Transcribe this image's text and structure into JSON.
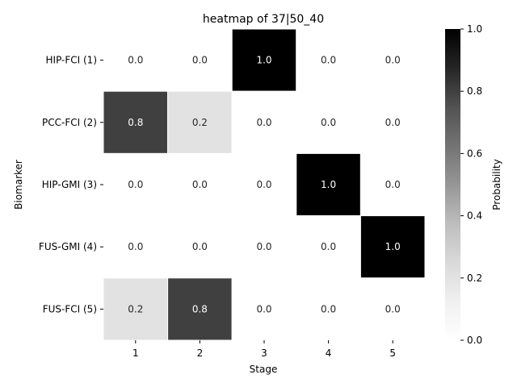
{
  "chart_data": {
    "type": "heatmap",
    "title": "heatmap of 37|50_40",
    "xlabel": "Stage",
    "ylabel": "Biomarker",
    "x_categories": [
      "1",
      "2",
      "3",
      "4",
      "5"
    ],
    "y_categories": [
      "HIP-FCI (1)",
      "PCC-FCI (2)",
      "HIP-GMI (3)",
      "FUS-GMI (4)",
      "FUS-FCI (5)"
    ],
    "values": [
      [
        0.0,
        0.0,
        1.0,
        0.0,
        0.0
      ],
      [
        0.8,
        0.2,
        0.0,
        0.0,
        0.0
      ],
      [
        0.0,
        0.0,
        0.0,
        1.0,
        0.0
      ],
      [
        0.0,
        0.0,
        0.0,
        0.0,
        1.0
      ],
      [
        0.2,
        0.8,
        0.0,
        0.0,
        0.0
      ]
    ],
    "value_labels": [
      [
        "0.0",
        "0.0",
        "1.0",
        "0.0",
        "0.0"
      ],
      [
        "0.8",
        "0.2",
        "0.0",
        "0.0",
        "0.0"
      ],
      [
        "0.0",
        "0.0",
        "0.0",
        "1.0",
        "0.0"
      ],
      [
        "0.0",
        "0.0",
        "0.0",
        "0.0",
        "1.0"
      ],
      [
        "0.2",
        "0.8",
        "0.0",
        "0.0",
        "0.0"
      ]
    ],
    "colorbar": {
      "label": "Probability",
      "range": [
        0.0,
        1.0
      ],
      "ticks": [
        "0.0",
        "0.2",
        "0.4",
        "0.6",
        "0.8",
        "1.0"
      ],
      "colormap": "Greys",
      "low_color": "#ffffff",
      "high_color": "#000000"
    }
  }
}
